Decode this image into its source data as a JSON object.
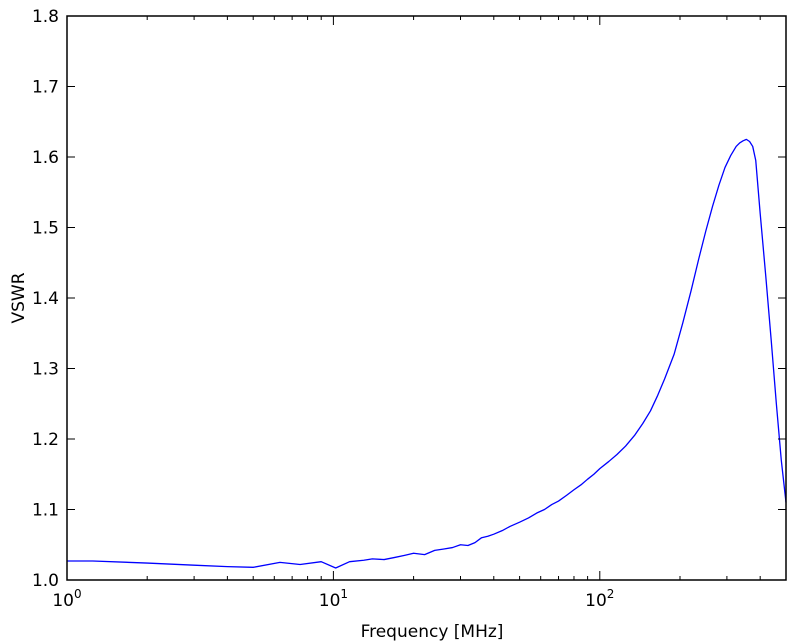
{
  "chart_data": {
    "type": "line",
    "title": "",
    "xlabel": "Frequency [MHz]",
    "ylabel": "VSWR",
    "xscale": "log",
    "xlim": [
      1,
      500
    ],
    "ylim": [
      1.0,
      1.8
    ],
    "grid": false,
    "legend": "none",
    "line_color": "#0000ff",
    "x_ticks": [
      {
        "value": 1,
        "base": "10",
        "exp": "0"
      },
      {
        "value": 10,
        "base": "10",
        "exp": "1"
      },
      {
        "value": 100,
        "base": "10",
        "exp": "2"
      }
    ],
    "y_ticks": [
      {
        "value": 1.0,
        "label": "1.0"
      },
      {
        "value": 1.1,
        "label": "1.1"
      },
      {
        "value": 1.2,
        "label": "1.2"
      },
      {
        "value": 1.3,
        "label": "1.3"
      },
      {
        "value": 1.4,
        "label": "1.4"
      },
      {
        "value": 1.5,
        "label": "1.5"
      },
      {
        "value": 1.6,
        "label": "1.6"
      },
      {
        "value": 1.7,
        "label": "1.7"
      },
      {
        "value": 1.8,
        "label": "1.8"
      }
    ],
    "series": [
      {
        "x": [
          1.0,
          1.25,
          2.0,
          3.0,
          4.0,
          5.0,
          6.3,
          7.5,
          9.0,
          10.2,
          11.5,
          13.0,
          14.0,
          15.5,
          17.0,
          18.5,
          20.0,
          22.0,
          24.0,
          26.0,
          28.0,
          30.0,
          32.0,
          34.0,
          36.0,
          38.0,
          40.0,
          43.0,
          46.0,
          50.0,
          54.0,
          58.0,
          62.0,
          66.0,
          70.0,
          75.0,
          80.0,
          85.0,
          90.0,
          95.0,
          100.0,
          108.0,
          116.0,
          125.0,
          135.0,
          145.0,
          155.0,
          165.0,
          175.0,
          190.0,
          205.0,
          220.0,
          235.0,
          250.0,
          265.0,
          280.0,
          295.0,
          310.0,
          325.0,
          335.0,
          345.0,
          355.0,
          365.0,
          375.0,
          385.0,
          400.0,
          420.0,
          440.0,
          460.0,
          480.0,
          500.0
        ],
        "y": [
          1.027,
          1.027,
          1.024,
          1.021,
          1.019,
          1.018,
          1.025,
          1.022,
          1.026,
          1.017,
          1.026,
          1.028,
          1.03,
          1.029,
          1.032,
          1.035,
          1.038,
          1.036,
          1.042,
          1.044,
          1.046,
          1.05,
          1.049,
          1.053,
          1.06,
          1.062,
          1.065,
          1.07,
          1.076,
          1.082,
          1.088,
          1.095,
          1.1,
          1.107,
          1.112,
          1.12,
          1.128,
          1.135,
          1.143,
          1.15,
          1.158,
          1.168,
          1.178,
          1.19,
          1.205,
          1.222,
          1.24,
          1.262,
          1.285,
          1.32,
          1.365,
          1.41,
          1.455,
          1.495,
          1.53,
          1.56,
          1.585,
          1.602,
          1.615,
          1.62,
          1.623,
          1.625,
          1.622,
          1.615,
          1.595,
          1.52,
          1.43,
          1.34,
          1.25,
          1.17,
          1.11
        ]
      }
    ]
  }
}
